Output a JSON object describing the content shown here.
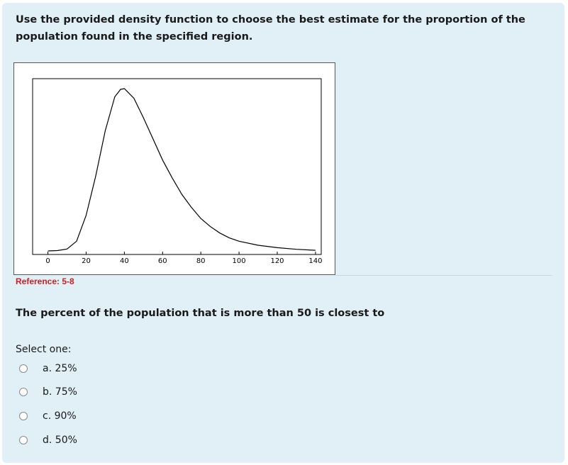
{
  "question": {
    "text": "Use the provided density function to choose the best estimate for the proportion of the population found in the specified region.",
    "reference": "Reference: 5-8",
    "prompt": "The percent of the population that is more than 50 is closest to",
    "select_label": "Select one:",
    "options": [
      {
        "label": "a. 25%",
        "selected": false
      },
      {
        "label": "b. 75%",
        "selected": false
      },
      {
        "label": "c. 90%",
        "selected": false
      },
      {
        "label": "d. 50%",
        "selected": false
      }
    ]
  },
  "chart_data": {
    "type": "line",
    "title": "",
    "xlabel": "",
    "ylabel": "",
    "xlim": [
      -8,
      143
    ],
    "x_ticks": [
      0,
      20,
      40,
      60,
      80,
      100,
      120,
      140
    ],
    "x_tick_labels": [
      "0",
      "20",
      "40",
      "60",
      "80",
      "100",
      "120",
      "140"
    ],
    "grid": false,
    "series": [
      {
        "x": [
          0,
          5,
          10,
          15,
          20,
          25,
          30,
          35,
          38,
          40,
          45,
          50,
          55,
          60,
          65,
          70,
          75,
          80,
          85,
          90,
          95,
          100,
          110,
          120,
          130,
          140
        ],
        "y": [
          0.0,
          0.002,
          0.012,
          0.06,
          0.22,
          0.46,
          0.74,
          0.95,
          0.995,
          1.0,
          0.94,
          0.82,
          0.69,
          0.56,
          0.45,
          0.35,
          0.27,
          0.2,
          0.15,
          0.11,
          0.08,
          0.06,
          0.035,
          0.02,
          0.01,
          0.004
        ]
      }
    ]
  }
}
